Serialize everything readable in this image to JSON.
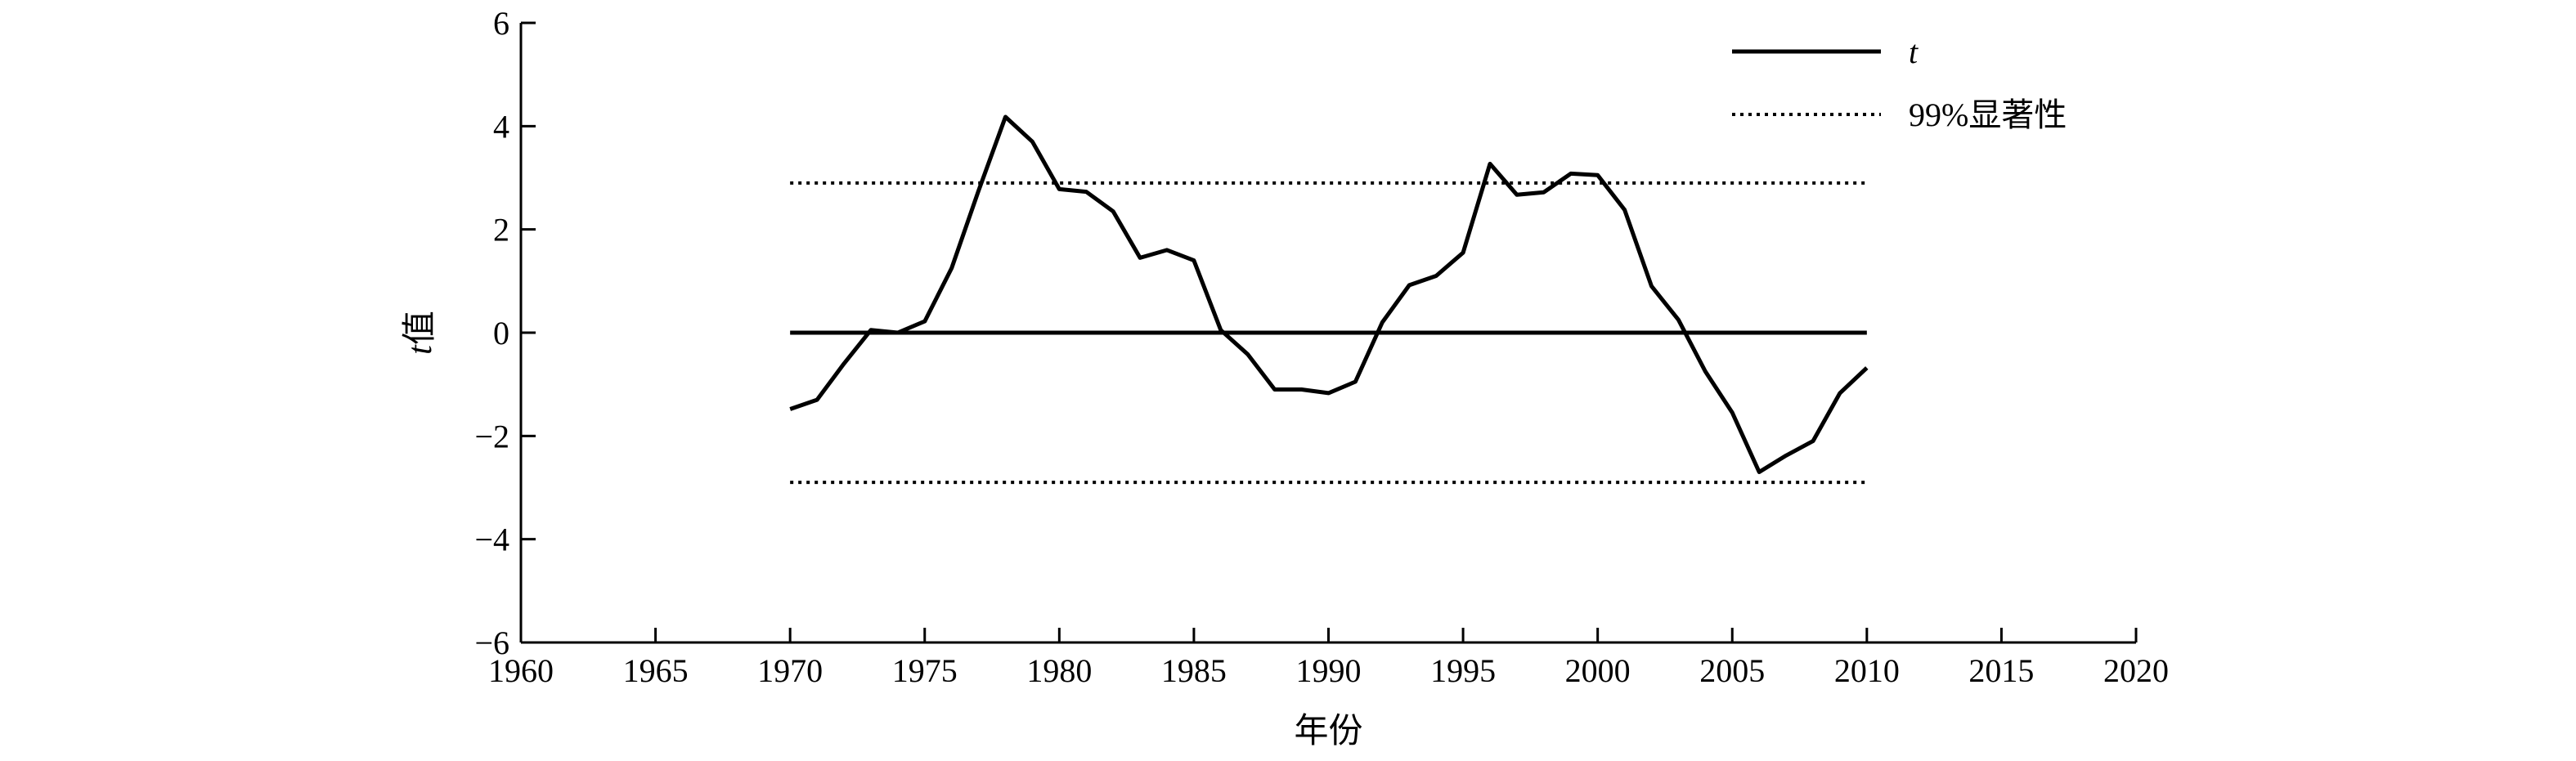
{
  "chart_data": {
    "type": "line",
    "xlabel": "年份",
    "ylabel_italic": "t",
    "ylabel_rest": "值",
    "xlim": [
      1960,
      2020
    ],
    "ylim": [
      -6,
      6
    ],
    "xticks": [
      1960,
      1965,
      1970,
      1975,
      1980,
      1985,
      1990,
      1995,
      2000,
      2005,
      2010,
      2015,
      2020
    ],
    "yticks": [
      6,
      4,
      2,
      0,
      -2,
      -4,
      -6
    ],
    "ytick_labels": [
      "6",
      "4",
      "2",
      "0",
      "−2",
      "−4",
      "−6"
    ],
    "legend_position": "top-right",
    "series": [
      {
        "name": "t",
        "style": "solid",
        "x": [
          1970,
          1971,
          1972,
          1973,
          1974,
          1975,
          1976,
          1977,
          1978,
          1979,
          1980,
          1981,
          1982,
          1983,
          1984,
          1985,
          1986,
          1987,
          1988,
          1989,
          1990,
          1991,
          1992,
          1993,
          1994,
          1995,
          1996,
          1997,
          1998,
          1999,
          2000,
          2001,
          2002,
          2003,
          2004,
          2005,
          2006,
          2007,
          2008,
          2009,
          2010
        ],
        "values": [
          -1.48,
          -1.3,
          -0.6,
          0.05,
          0.0,
          0.22,
          1.25,
          2.75,
          4.18,
          3.7,
          2.78,
          2.73,
          2.35,
          1.45,
          1.6,
          1.4,
          0.05,
          -0.42,
          -1.1,
          -1.1,
          -1.17,
          -0.95,
          0.2,
          0.92,
          1.1,
          1.55,
          3.27,
          2.67,
          2.72,
          3.08,
          3.05,
          2.38,
          0.9,
          0.25,
          -0.75,
          -1.55,
          -2.7,
          -2.38,
          -2.1,
          -1.17,
          -0.68
        ]
      },
      {
        "name": "99%显著性",
        "style": "dotted",
        "levels": [
          2.9,
          -2.9
        ],
        "x_range": [
          1970,
          2010
        ]
      }
    ],
    "reference_line": {
      "y": 0,
      "x_range": [
        1970,
        2010
      ],
      "style": "solid"
    }
  }
}
